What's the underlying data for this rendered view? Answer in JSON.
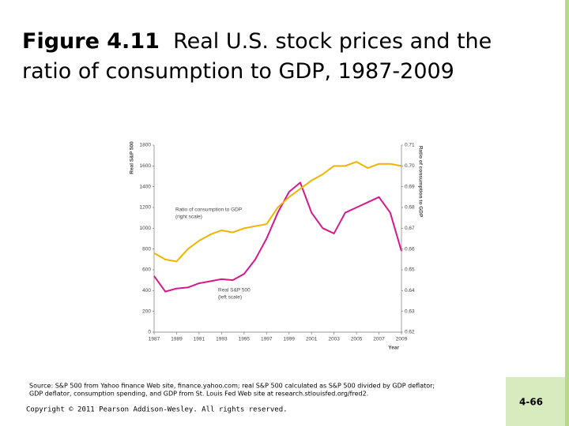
{
  "chart_data": {
    "type": "line",
    "figure_label": "Figure 4.11",
    "title": "Real U.S. stock prices and the ratio of consumption to GDP, 1987-2009",
    "x_label": "Year",
    "y_label": "Real S&P 500",
    "y2_label": "Ratio of consumption to GDP",
    "x": [
      1987,
      1988,
      1989,
      1990,
      1991,
      1992,
      1993,
      1994,
      1995,
      1996,
      1997,
      1998,
      1999,
      2000,
      2001,
      2002,
      2003,
      2004,
      2005,
      2006,
      2007,
      2008,
      2009
    ],
    "xlim": [
      1987,
      2009
    ],
    "xticks": [
      1987,
      1989,
      1991,
      1993,
      1995,
      1997,
      1999,
      2001,
      2003,
      2005,
      2007,
      2009
    ],
    "ylim": [
      0,
      1800
    ],
    "yticks": [
      0,
      200,
      400,
      600,
      800,
      1000,
      1200,
      1400,
      1600,
      1800
    ],
    "y2lim": [
      0.62,
      0.71
    ],
    "y2ticks": [
      0.62,
      0.63,
      0.64,
      0.65,
      0.66,
      0.67,
      0.68,
      0.69,
      {
        "value": 0.7,
        "label": "0.70"
      },
      0.71
    ],
    "series": [
      {
        "name": "Real S&P 500",
        "color": "#d4198c",
        "axis": "y",
        "annotation": "(left scale)",
        "values": [
          540,
          390,
          420,
          430,
          470,
          490,
          510,
          500,
          560,
          700,
          900,
          1150,
          1350,
          1440,
          1150,
          1000,
          950,
          1150,
          1200,
          1250,
          1300,
          1150,
          780
        ]
      },
      {
        "name": "Ratio of consumption to GDP",
        "color": "#f0b400",
        "axis": "y2",
        "annotation": "(right scale)",
        "values": [
          0.658,
          0.655,
          0.654,
          0.66,
          0.664,
          0.667,
          0.669,
          0.668,
          0.67,
          0.671,
          0.672,
          0.68,
          0.685,
          0.689,
          0.693,
          0.696,
          0.7,
          0.7,
          0.702,
          0.699,
          0.701,
          0.701,
          0.7
        ]
      }
    ]
  },
  "source": [
    "Source: S&P 500 from Yahoo finance Web site, finance.yahoo.com; real S&P 500 calculated as S&P 500 divided by GDP deflator;",
    "GDP deflator, consumption spending, and GDP from St. Louis Fed Web site at research.stlouisfed.org/fred2."
  ],
  "copyright": "Copyright © 2011 Pearson Addison-Wesley. All rights reserved.",
  "page_number": "4-66"
}
